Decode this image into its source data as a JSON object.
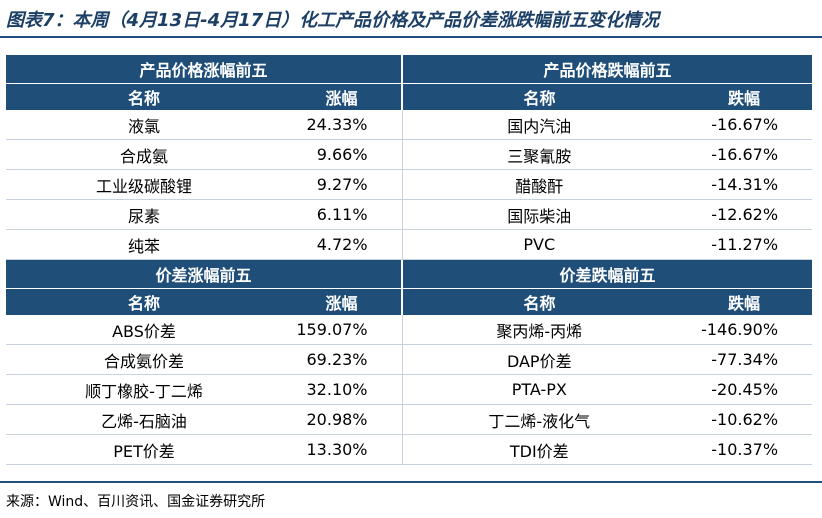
{
  "title": "图表7：本周（4月13日-4月17日）化工产品价格及产品价差涨跌幅前五变化情况",
  "price_table": {
    "up_title": "产品价格涨幅前五",
    "down_title": "产品价格跌幅前五",
    "headers": [
      "名称",
      "涨幅",
      "名称",
      "跌幅"
    ],
    "rows": [
      [
        "液氯",
        "24.33%",
        "国内汽油",
        "-16.67%"
      ],
      [
        "合成氨",
        "9.66%",
        "三聚氰胺",
        "-16.67%"
      ],
      [
        "工业级碳酸锂",
        "9.27%",
        "醋酸酐",
        "-14.31%"
      ],
      [
        "尿素",
        "6.11%",
        "国际柴油",
        "-12.62%"
      ],
      [
        "纯苯",
        "4.72%",
        "PVC",
        "-11.27%"
      ]
    ]
  },
  "spread_table": {
    "up_title": "价差涨幅前五",
    "down_title": "价差跌幅前五",
    "headers": [
      "名称",
      "涨幅",
      "名称",
      "跌幅"
    ],
    "rows": [
      [
        "ABS价差",
        "159.07%",
        "聚丙烯-丙烯",
        "-146.90%"
      ],
      [
        "合成氨价差",
        "69.23%",
        "DAP价差",
        "-77.34%"
      ],
      [
        "顺丁橡胶-丁二烯",
        "32.10%",
        "PTA-PX",
        "-20.45%"
      ],
      [
        "乙烯-石脑油",
        "20.98%",
        "丁二烯-液化气",
        "-10.62%"
      ],
      [
        "PET价差",
        "13.30%",
        "TDI价差",
        "-10.37%"
      ]
    ]
  },
  "source": "来源：Wind、百川资讯、国金证券研究所",
  "colors": {
    "header_bg": "#1f4e79",
    "title_text": "#1c3f66"
  }
}
